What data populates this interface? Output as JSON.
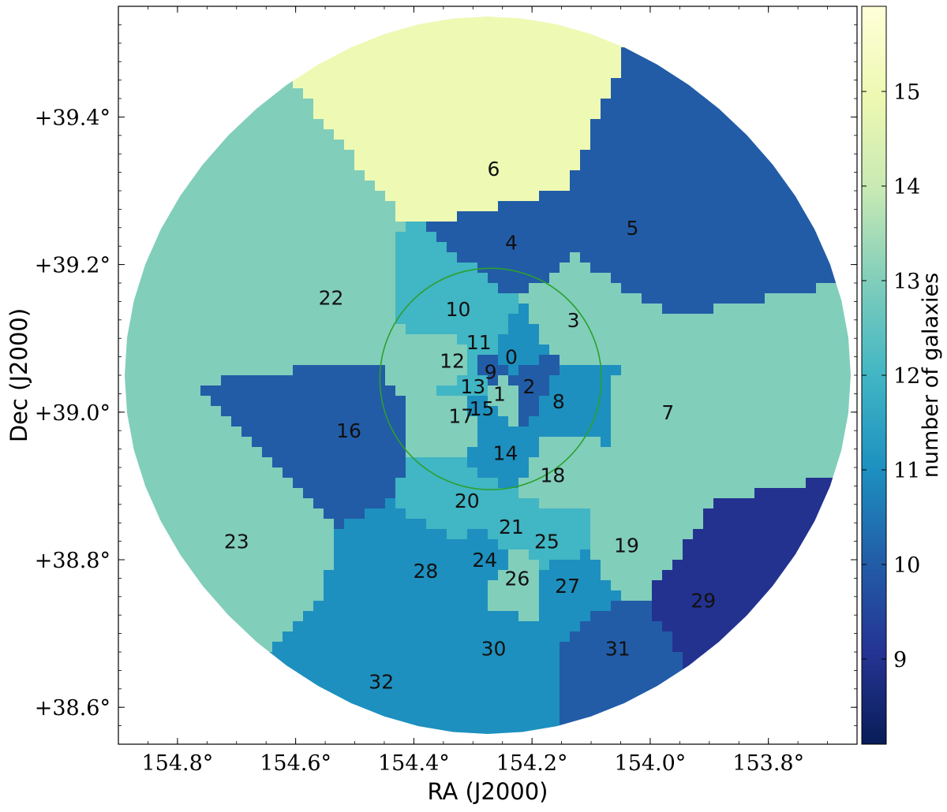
{
  "chart_data": {
    "type": "heatmap",
    "title": "",
    "xlabel": "RA (J2000)",
    "ylabel": "Dec (J2000)",
    "xlim": [
      154.9,
      153.65
    ],
    "ylim": [
      38.55,
      39.55
    ],
    "x_ticks": [
      154.8,
      154.6,
      154.4,
      154.2,
      154.0,
      153.8
    ],
    "y_ticks": [
      38.6,
      38.8,
      39.0,
      39.2,
      39.4
    ],
    "x_tick_labels": [
      "154.8°",
      "154.6°",
      "154.4°",
      "154.2°",
      "154.0°",
      "153.8°"
    ],
    "y_tick_labels": [
      "+38.6°",
      "+38.8°",
      "+39.0°",
      "+39.2°",
      "+39.4°"
    ],
    "colorbar": {
      "label": "number of galaxies",
      "range": [
        8.1,
        15.9
      ],
      "ticks": [
        9,
        10,
        11,
        12,
        13,
        14,
        15
      ],
      "tick_labels": [
        "9",
        "10",
        "11",
        "12",
        "13",
        "14",
        "15"
      ],
      "colormap": [
        "#081d58",
        "#253494",
        "#225ea8",
        "#1d91c0",
        "#41b6c4",
        "#7fcdbb",
        "#c7e9b4",
        "#edf8b1",
        "#ffffd9"
      ]
    },
    "circle": {
      "ra": 154.27,
      "dec": 39.045,
      "radius_deg": 0.15,
      "color": "#2ca02c"
    },
    "regions": [
      {
        "id": "0",
        "ra": 154.235,
        "dec": 39.075,
        "count": 11
      },
      {
        "id": "1",
        "ra": 154.255,
        "dec": 39.025,
        "count": 13
      },
      {
        "id": "2",
        "ra": 154.205,
        "dec": 39.035,
        "count": 10
      },
      {
        "id": "3",
        "ra": 154.13,
        "dec": 39.125,
        "count": 13
      },
      {
        "id": "4",
        "ra": 154.235,
        "dec": 39.23,
        "count": 10
      },
      {
        "id": "5",
        "ra": 154.03,
        "dec": 39.25,
        "count": 10
      },
      {
        "id": "6",
        "ra": 154.265,
        "dec": 39.33,
        "count": 15
      },
      {
        "id": "7",
        "ra": 153.97,
        "dec": 39.0,
        "count": 13
      },
      {
        "id": "8",
        "ra": 154.155,
        "dec": 39.015,
        "count": 11
      },
      {
        "id": "9",
        "ra": 154.27,
        "dec": 39.055,
        "count": 10
      },
      {
        "id": "10",
        "ra": 154.325,
        "dec": 39.14,
        "count": 12
      },
      {
        "id": "11",
        "ra": 154.29,
        "dec": 39.095,
        "count": 12
      },
      {
        "id": "12",
        "ra": 154.335,
        "dec": 39.07,
        "count": 13
      },
      {
        "id": "13",
        "ra": 154.3,
        "dec": 39.035,
        "count": 12
      },
      {
        "id": "14",
        "ra": 154.245,
        "dec": 38.945,
        "count": 11
      },
      {
        "id": "15",
        "ra": 154.285,
        "dec": 39.005,
        "count": 11
      },
      {
        "id": "16",
        "ra": 154.51,
        "dec": 38.975,
        "count": 10
      },
      {
        "id": "17",
        "ra": 154.32,
        "dec": 38.995,
        "count": 13
      },
      {
        "id": "18",
        "ra": 154.165,
        "dec": 38.915,
        "count": 13
      },
      {
        "id": "19",
        "ra": 154.04,
        "dec": 38.82,
        "count": 13
      },
      {
        "id": "20",
        "ra": 154.31,
        "dec": 38.88,
        "count": 12
      },
      {
        "id": "21",
        "ra": 154.235,
        "dec": 38.845,
        "count": 12
      },
      {
        "id": "22",
        "ra": 154.54,
        "dec": 39.155,
        "count": 13
      },
      {
        "id": "23",
        "ra": 154.7,
        "dec": 38.825,
        "count": 13
      },
      {
        "id": "24",
        "ra": 154.28,
        "dec": 38.8,
        "count": 11
      },
      {
        "id": "25",
        "ra": 154.175,
        "dec": 38.825,
        "count": 12
      },
      {
        "id": "26",
        "ra": 154.225,
        "dec": 38.775,
        "count": 13
      },
      {
        "id": "27",
        "ra": 154.14,
        "dec": 38.765,
        "count": 11
      },
      {
        "id": "28",
        "ra": 154.38,
        "dec": 38.785,
        "count": 11
      },
      {
        "id": "29",
        "ra": 153.91,
        "dec": 38.745,
        "count": 9
      },
      {
        "id": "30",
        "ra": 154.265,
        "dec": 38.68,
        "count": 11
      },
      {
        "id": "31",
        "ra": 154.055,
        "dec": 38.68,
        "count": 10
      },
      {
        "id": "32",
        "ra": 154.455,
        "dec": 38.635,
        "count": 11
      }
    ]
  }
}
